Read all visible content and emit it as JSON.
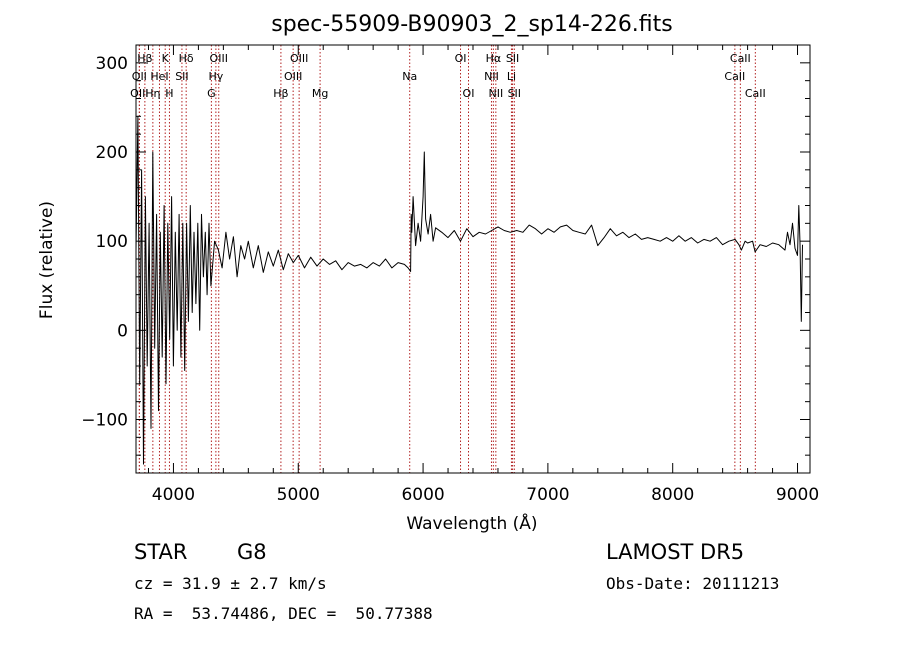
{
  "chart_data": {
    "type": "line",
    "title": "spec-55909-B90903_2_sp14-226.fits",
    "xlabel": "Wavelength (Å)",
    "ylabel": "Flux (relative)",
    "xlim": [
      3700,
      9100
    ],
    "ylim": [
      -160,
      320
    ],
    "xticks": [
      4000,
      5000,
      6000,
      7000,
      8000,
      9000
    ],
    "yticks": [
      -100,
      0,
      100,
      200,
      300
    ],
    "grid": false,
    "line_color": "#000000",
    "marker_color": "#b22222",
    "series": [
      {
        "x": [
          3700,
          3715,
          3730,
          3745,
          3760,
          3775,
          3790,
          3805,
          3820,
          3835,
          3850,
          3865,
          3880,
          3895,
          3910,
          3925,
          3940,
          3955,
          3970,
          3985,
          4000,
          4015,
          4030,
          4045,
          4060,
          4075,
          4090,
          4105,
          4120,
          4135,
          4150,
          4165,
          4180,
          4195,
          4210,
          4225,
          4240,
          4255,
          4270,
          4285,
          4300,
          4330,
          4360,
          4390,
          4420,
          4450,
          4480,
          4510,
          4540,
          4570,
          4600,
          4640,
          4680,
          4720,
          4760,
          4800,
          4840,
          4880,
          4920,
          4960,
          5000,
          5050,
          5100,
          5150,
          5200,
          5250,
          5300,
          5350,
          5400,
          5450,
          5500,
          5550,
          5600,
          5650,
          5700,
          5750,
          5800,
          5850,
          5880,
          5900,
          5905,
          5910,
          5920,
          5940,
          5960,
          5980,
          6000,
          6010,
          6020,
          6040,
          6060,
          6080,
          6100,
          6150,
          6200,
          6250,
          6300,
          6350,
          6400,
          6450,
          6500,
          6550,
          6600,
          6650,
          6700,
          6750,
          6800,
          6850,
          6900,
          6950,
          7000,
          7050,
          7100,
          7150,
          7200,
          7250,
          7300,
          7350,
          7400,
          7450,
          7500,
          7550,
          7600,
          7650,
          7700,
          7750,
          7800,
          7850,
          7900,
          7950,
          8000,
          8050,
          8100,
          8150,
          8200,
          8250,
          8300,
          8350,
          8400,
          8450,
          8500,
          8530,
          8550,
          8580,
          8600,
          8640,
          8660,
          8700,
          8750,
          8800,
          8850,
          8900,
          8920,
          8940,
          8960,
          8980,
          9000,
          9010,
          9020,
          9030,
          9040
        ],
        "y": [
          90,
          240,
          -60,
          180,
          -150,
          150,
          -40,
          120,
          -110,
          200,
          -20,
          130,
          -90,
          110,
          -30,
          140,
          -60,
          120,
          -10,
          150,
          -40,
          110,
          0,
          130,
          -30,
          120,
          -45,
          120,
          10,
          140,
          20,
          110,
          30,
          120,
          0,
          130,
          60,
          110,
          40,
          120,
          50,
          100,
          90,
          70,
          110,
          80,
          105,
          60,
          95,
          80,
          100,
          70,
          95,
          65,
          88,
          72,
          90,
          68,
          86,
          76,
          84,
          70,
          82,
          72,
          80,
          74,
          78,
          68,
          76,
          72,
          74,
          70,
          76,
          72,
          80,
          70,
          76,
          74,
          70,
          66,
          130,
          110,
          150,
          95,
          120,
          100,
          150,
          200,
          125,
          108,
          130,
          100,
          115,
          110,
          104,
          112,
          100,
          114,
          105,
          110,
          108,
          112,
          116,
          112,
          110,
          112,
          110,
          118,
          114,
          108,
          114,
          110,
          116,
          118,
          112,
          110,
          108,
          118,
          95,
          104,
          114,
          106,
          110,
          104,
          108,
          102,
          104,
          102,
          100,
          104,
          100,
          106,
          100,
          104,
          98,
          102,
          100,
          104,
          96,
          100,
          102,
          96,
          90,
          100,
          98,
          100,
          88,
          96,
          94,
          98,
          96,
          90,
          110,
          96,
          120,
          92,
          84,
          140,
          98,
          10,
          96
        ]
      }
    ],
    "spectral_lines": [
      {
        "label": "Hβ",
        "wavelength": 3771,
        "row": 1
      },
      {
        "label": "Hη",
        "wavelength": 3835,
        "row": 3
      },
      {
        "label": "K",
        "wavelength": 3934,
        "row": 1
      },
      {
        "label": "H",
        "wavelength": 3968,
        "row": 3
      },
      {
        "label": "HeI",
        "wavelength": 3888,
        "row": 2
      },
      {
        "label": "Hδ",
        "wavelength": 4102,
        "row": 1
      },
      {
        "label": "SII",
        "wavelength": 4068,
        "row": 2
      },
      {
        "label": "OII",
        "wavelength": 3727,
        "row": 2
      },
      {
        "label": "OIII",
        "wavelength": 3727,
        "row": 3
      },
      {
        "label": "OIII",
        "wavelength": 4363,
        "row": 1
      },
      {
        "label": "Hγ",
        "wavelength": 4340,
        "row": 2
      },
      {
        "label": "G",
        "wavelength": 4304,
        "row": 3
      },
      {
        "label": "OIII",
        "wavelength": 5007,
        "row": 1
      },
      {
        "label": "OIII",
        "wavelength": 4959,
        "row": 2
      },
      {
        "label": "Hβ",
        "wavelength": 4861,
        "row": 3
      },
      {
        "label": "Mg",
        "wavelength": 5175,
        "row": 3
      },
      {
        "label": "Na",
        "wavelength": 5893,
        "row": 2
      },
      {
        "label": "OI",
        "wavelength": 6300,
        "row": 1
      },
      {
        "label": "OI",
        "wavelength": 6364,
        "row": 3
      },
      {
        "label": "Hα",
        "wavelength": 6563,
        "row": 1
      },
      {
        "label": "SII",
        "wavelength": 6717,
        "row": 1
      },
      {
        "label": "NII",
        "wavelength": 6548,
        "row": 2
      },
      {
        "label": "Li",
        "wavelength": 6708,
        "row": 2
      },
      {
        "label": "NII",
        "wavelength": 6583,
        "row": 3
      },
      {
        "label": "SII",
        "wavelength": 6731,
        "row": 3
      },
      {
        "label": "CaII",
        "wavelength": 8542,
        "row": 1
      },
      {
        "label": "CaII",
        "wavelength": 8498,
        "row": 2
      },
      {
        "label": "CaII",
        "wavelength": 8662,
        "row": 3
      }
    ]
  },
  "info": {
    "class_label": "STAR",
    "subclass_label": "G8",
    "survey_label": "LAMOST DR5",
    "redshift": "cz = 31.9 ± 2.7 km/s",
    "obs_date": "Obs-Date: 20111213",
    "coords": "RA =  53.74486, DEC =  50.77388"
  }
}
